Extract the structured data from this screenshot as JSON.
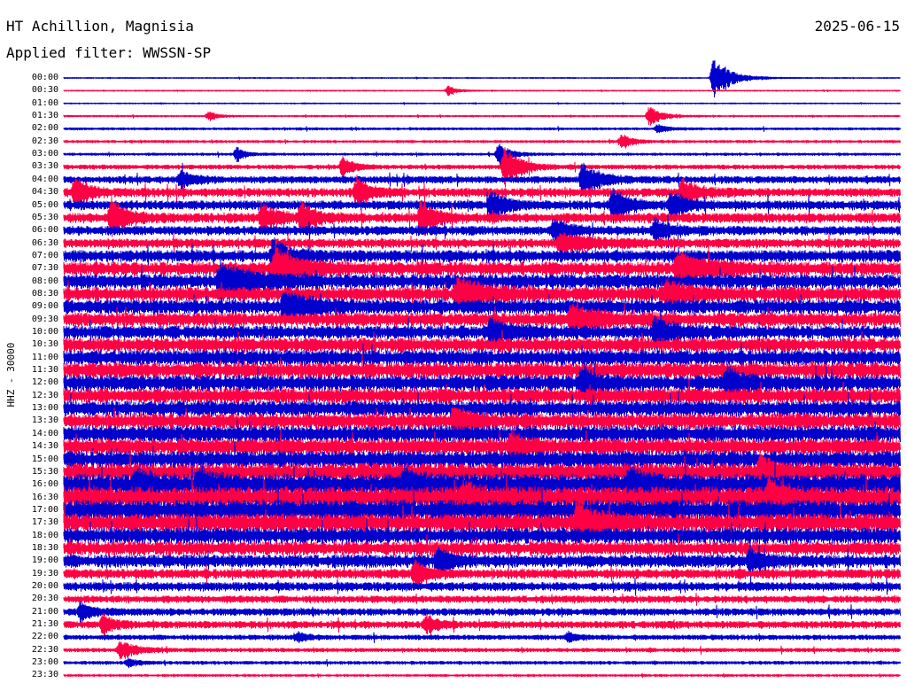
{
  "header": {
    "station": "HT Achillion, Magnisia",
    "date": "2025-06-15",
    "filter_label": "Applied filter: WWSSN-SP",
    "channel": "HHZ - 30000"
  },
  "chart_data": {
    "type": "line",
    "title": "HT Achillion, Magnisia",
    "subtitle": "Applied filter: WWSSN-SP",
    "date": "2025-06-15",
    "ylabel": "HHZ - 30000",
    "trace_colors": [
      "#0000cc",
      "#ff0044"
    ],
    "row_labels": [
      "00:00",
      "00:30",
      "01:00",
      "01:30",
      "02:00",
      "02:30",
      "03:00",
      "03:30",
      "04:00",
      "04:30",
      "05:00",
      "05:30",
      "06:00",
      "06:30",
      "07:00",
      "07:30",
      "08:00",
      "08:30",
      "09:00",
      "09:30",
      "10:00",
      "10:30",
      "11:00",
      "11:30",
      "12:00",
      "12:30",
      "13:00",
      "13:30",
      "14:00",
      "14:30",
      "15:00",
      "15:30",
      "16:00",
      "16:30",
      "17:00",
      "17:30",
      "18:00",
      "18:30",
      "19:00",
      "19:30",
      "20:00",
      "20:30",
      "21:00",
      "21:30",
      "22:00",
      "22:30",
      "23:00",
      "23:30"
    ],
    "noise_level": [
      0.4,
      0.4,
      0.4,
      0.6,
      0.9,
      0.9,
      0.9,
      1.6,
      2.6,
      3.2,
      3.4,
      3.6,
      3.4,
      3.4,
      4.4,
      5.2,
      5.4,
      5.4,
      5.4,
      5.2,
      5.0,
      5.4,
      5.8,
      6.0,
      6.0,
      5.8,
      5.8,
      6.0,
      6.2,
      6.2,
      6.4,
      7.0,
      8.4,
      8.4,
      8.0,
      7.2,
      6.0,
      5.2,
      4.8,
      3.6,
      3.2,
      2.6,
      2.6,
      2.6,
      1.8,
      1.4,
      1.2,
      0.8
    ],
    "events": [
      {
        "row": 0,
        "minute": 23.3,
        "amp": 22,
        "width": 0.6
      },
      {
        "row": 1,
        "minute": 13.8,
        "amp": 6,
        "width": 0.3
      },
      {
        "row": 3,
        "minute": 5.2,
        "amp": 5,
        "width": 0.3
      },
      {
        "row": 3,
        "minute": 21.0,
        "amp": 12,
        "width": 0.4
      },
      {
        "row": 4,
        "minute": 21.3,
        "amp": 5,
        "width": 0.3
      },
      {
        "row": 5,
        "minute": 20.0,
        "amp": 8,
        "width": 0.4
      },
      {
        "row": 6,
        "minute": 6.2,
        "amp": 8,
        "width": 0.3
      },
      {
        "row": 6,
        "minute": 15.6,
        "amp": 12,
        "width": 0.4
      },
      {
        "row": 7,
        "minute": 15.8,
        "amp": 26,
        "width": 0.5
      },
      {
        "row": 7,
        "minute": 10.0,
        "amp": 10,
        "width": 0.4
      },
      {
        "row": 8,
        "minute": 18.6,
        "amp": 18,
        "width": 0.6
      },
      {
        "row": 8,
        "minute": 4.2,
        "amp": 10,
        "width": 0.4
      },
      {
        "row": 9,
        "minute": 0.4,
        "amp": 16,
        "width": 0.5
      },
      {
        "row": 9,
        "minute": 10.5,
        "amp": 16,
        "width": 0.5
      },
      {
        "row": 9,
        "minute": 22.2,
        "amp": 16,
        "width": 0.5
      },
      {
        "row": 10,
        "minute": 15.3,
        "amp": 16,
        "width": 0.5
      },
      {
        "row": 10,
        "minute": 19.7,
        "amp": 18,
        "width": 0.5
      },
      {
        "row": 10,
        "minute": 21.8,
        "amp": 16,
        "width": 0.5
      },
      {
        "row": 11,
        "minute": 1.7,
        "amp": 22,
        "width": 0.5
      },
      {
        "row": 11,
        "minute": 7.1,
        "amp": 16,
        "width": 0.5
      },
      {
        "row": 11,
        "minute": 8.5,
        "amp": 16,
        "width": 0.5
      },
      {
        "row": 11,
        "minute": 12.8,
        "amp": 18,
        "width": 0.5
      },
      {
        "row": 12,
        "minute": 17.6,
        "amp": 14,
        "width": 0.5
      },
      {
        "row": 12,
        "minute": 21.2,
        "amp": 12,
        "width": 0.5
      },
      {
        "row": 13,
        "minute": 17.8,
        "amp": 10,
        "width": 1.2
      },
      {
        "row": 14,
        "minute": 7.5,
        "amp": 18,
        "width": 0.6
      },
      {
        "row": 15,
        "minute": 7.6,
        "amp": 22,
        "width": 0.8
      },
      {
        "row": 15,
        "minute": 22.0,
        "amp": 16,
        "width": 1.0
      },
      {
        "row": 16,
        "minute": 5.6,
        "amp": 20,
        "width": 1.0
      },
      {
        "row": 17,
        "minute": 14.1,
        "amp": 16,
        "width": 1.0
      },
      {
        "row": 17,
        "minute": 21.6,
        "amp": 14,
        "width": 0.8
      },
      {
        "row": 18,
        "minute": 7.9,
        "amp": 18,
        "width": 0.8
      },
      {
        "row": 19,
        "minute": 18.2,
        "amp": 14,
        "width": 1.0
      },
      {
        "row": 20,
        "minute": 15.3,
        "amp": 12,
        "width": 0.8
      },
      {
        "row": 20,
        "minute": 21.2,
        "amp": 14,
        "width": 0.8
      },
      {
        "row": 24,
        "minute": 23.8,
        "amp": 14,
        "width": 0.6
      },
      {
        "row": 24,
        "minute": 18.6,
        "amp": 20,
        "width": 0.4
      },
      {
        "row": 27,
        "minute": 14.0,
        "amp": 16,
        "width": 0.5
      },
      {
        "row": 29,
        "minute": 16.0,
        "amp": 14,
        "width": 0.5
      },
      {
        "row": 31,
        "minute": 25.0,
        "amp": 20,
        "width": 0.5
      },
      {
        "row": 32,
        "minute": 2.6,
        "amp": 14,
        "width": 0.5
      },
      {
        "row": 32,
        "minute": 4.8,
        "amp": 14,
        "width": 0.5
      },
      {
        "row": 32,
        "minute": 12.2,
        "amp": 14,
        "width": 0.5
      },
      {
        "row": 32,
        "minute": 20.3,
        "amp": 16,
        "width": 0.6
      },
      {
        "row": 33,
        "minute": 14.3,
        "amp": 12,
        "width": 0.5
      },
      {
        "row": 33,
        "minute": 25.3,
        "amp": 18,
        "width": 0.5
      },
      {
        "row": 35,
        "minute": 18.4,
        "amp": 22,
        "width": 0.7
      },
      {
        "row": 38,
        "minute": 13.4,
        "amp": 12,
        "width": 0.5
      },
      {
        "row": 38,
        "minute": 24.6,
        "amp": 12,
        "width": 0.4
      },
      {
        "row": 39,
        "minute": 12.6,
        "amp": 14,
        "width": 0.4
      },
      {
        "row": 42,
        "minute": 0.6,
        "amp": 10,
        "width": 0.4
      },
      {
        "row": 43,
        "minute": 1.4,
        "amp": 12,
        "width": 0.4
      },
      {
        "row": 43,
        "minute": 13.0,
        "amp": 10,
        "width": 0.4
      },
      {
        "row": 44,
        "minute": 8.4,
        "amp": 6,
        "width": 0.3
      },
      {
        "row": 44,
        "minute": 18.1,
        "amp": 6,
        "width": 0.3
      },
      {
        "row": 45,
        "minute": 2.0,
        "amp": 10,
        "width": 0.6
      },
      {
        "row": 46,
        "minute": 2.3,
        "amp": 5,
        "width": 0.3
      }
    ],
    "x_range_minutes": [
      0,
      30
    ],
    "grid": false,
    "legend": "none"
  }
}
